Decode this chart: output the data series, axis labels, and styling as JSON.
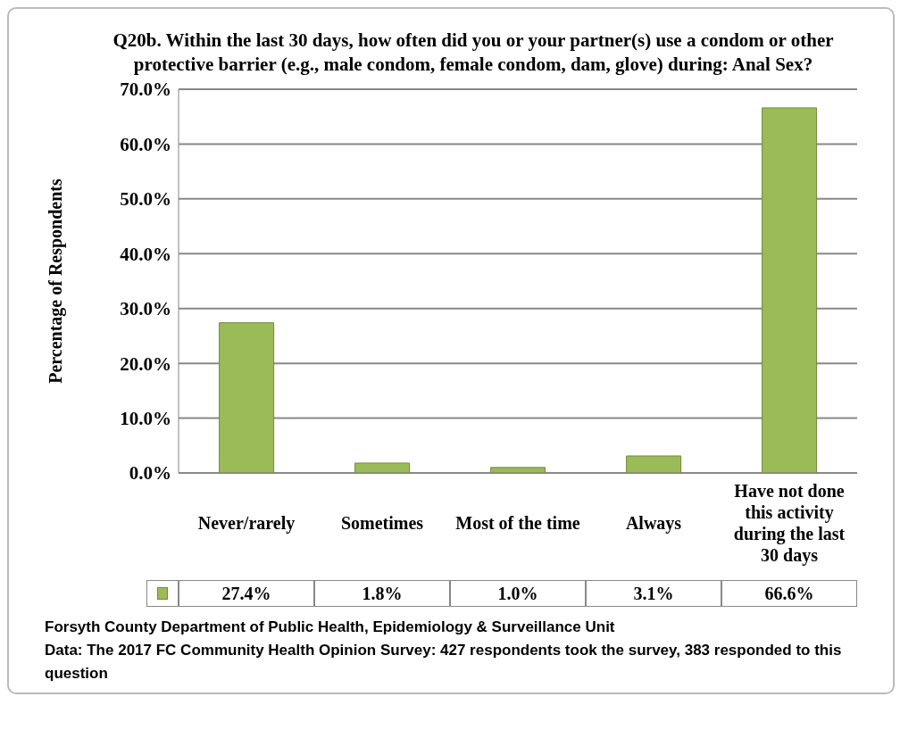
{
  "chart_data": {
    "type": "bar",
    "title": "Q20b. Within the last 30 days, how often did you or your partner(s) use a condom or other protective barrier (e.g., male condom, female condom, dam, glove) during: Anal Sex?",
    "ylabel": "Percentage of Respondents",
    "categories": [
      "Never/rarely",
      "Sometimes",
      "Most of the time",
      "Always",
      "Have not done this activity during the last 30 days"
    ],
    "values": [
      27.4,
      1.8,
      1.0,
      3.1,
      66.6
    ],
    "value_labels": [
      "27.4%",
      "1.8%",
      "1.0%",
      "3.1%",
      "66.6%"
    ],
    "color": "#9bbb59",
    "ylim": [
      0,
      70
    ],
    "yticks": [
      {
        "value": 0,
        "label": "0.0%"
      },
      {
        "value": 10,
        "label": "10.0%"
      },
      {
        "value": 20,
        "label": "20.0%"
      },
      {
        "value": 30,
        "label": "30.0%"
      },
      {
        "value": 40,
        "label": "40.0%"
      },
      {
        "value": 50,
        "label": "50.0%"
      },
      {
        "value": 60,
        "label": "60.0%"
      },
      {
        "value": 70,
        "label": "70.0%"
      }
    ],
    "grid": "y",
    "annotations": [
      "Forsyth County Department of Public Health, Epidemiology & Surveillance Unit",
      "Data: The 2017 FC Community Health Opinion Survey: 427 respondents took the survey, 383 responded to this question"
    ]
  }
}
